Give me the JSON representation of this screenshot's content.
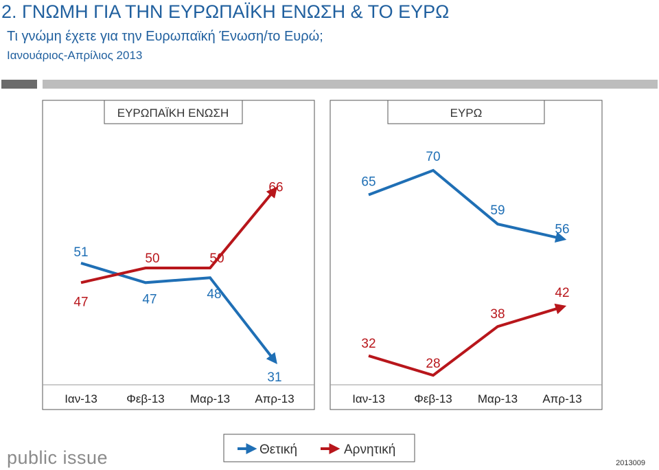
{
  "header": {
    "title": "2. ΓΝΩΜΗ ΓΙΑ ΤΗΝ ΕΥΡΩΠΑΪΚΗ ΕΝΩΣΗ & ΤΟ ΕΥΡΩ",
    "subtitle": "Τι γνώμη έχετε για την Ευρωπαϊκή Ένωση/το Ευρώ;",
    "period": "Ιανουάριος-Απρίλιος 2013"
  },
  "colors": {
    "positive": "#1f6fb5",
    "negative": "#b8161b",
    "accent": "#1f5f9e"
  },
  "chart_data": [
    {
      "type": "line",
      "title": "ΕΥΡΩΠΑΪΚΗ ΕΝΩΣΗ",
      "categories": [
        "Ιαν-13",
        "Φεβ-13",
        "Μαρ-13",
        "Απρ-13"
      ],
      "series": [
        {
          "name": "Θετική",
          "values": [
            51,
            47,
            48,
            31
          ]
        },
        {
          "name": "Αρνητική",
          "values": [
            47,
            50,
            50,
            66
          ]
        }
      ]
    },
    {
      "type": "line",
      "title": "ΕΥΡΩ",
      "categories": [
        "Ιαν-13",
        "Φεβ-13",
        "Μαρ-13",
        "Απρ-13"
      ],
      "series": [
        {
          "name": "Θετική",
          "values": [
            65,
            70,
            59,
            56
          ]
        },
        {
          "name": "Αρνητική",
          "values": [
            32,
            28,
            38,
            42
          ]
        }
      ]
    }
  ],
  "legend": {
    "positive_label": "Θετική",
    "negative_label": "Αρνητική"
  },
  "footer": {
    "logo": "public issue",
    "code": "2013009"
  }
}
